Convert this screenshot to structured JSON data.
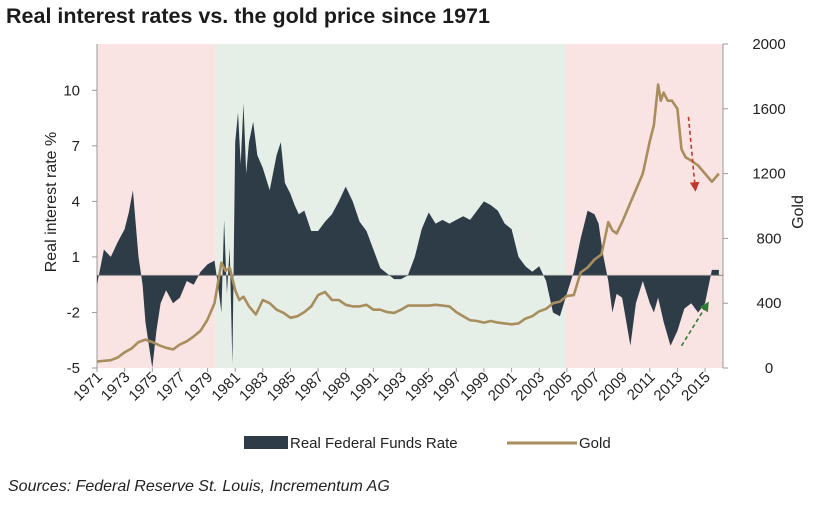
{
  "title": "Real interest rates vs. the gold price since 1971",
  "source": "Sources: Federal Reserve St. Louis, Incrementum AG",
  "colors": {
    "fed_funds": "#2e3c47",
    "gold": "#a88d5d",
    "shade_pink": "#f9e3e3",
    "shade_green": "#e5efe8",
    "arrow_red": "#c0392b",
    "arrow_green": "#2e7d32"
  },
  "chart_data": {
    "type": "area",
    "title": "Real interest rates vs. the gold price since 1971",
    "xlim": [
      1971,
      2016.3
    ],
    "x_ticks": [
      "1971",
      "1973",
      "1975",
      "1977",
      "1979",
      "1981",
      "1983",
      "1985",
      "1987",
      "1989",
      "1991",
      "1993",
      "1995",
      "1997",
      "1999",
      "2001",
      "2003",
      "2005",
      "2007",
      "2009",
      "2011",
      "2013",
      "2015"
    ],
    "y_left": {
      "label": "Real interest  rate %",
      "lim": [
        -5,
        12.5
      ],
      "ticks": [
        "-5",
        "-2",
        "1",
        "4",
        "7",
        "10"
      ]
    },
    "y_right": {
      "label": "Gold",
      "lim": [
        0,
        2000
      ],
      "ticks": [
        "0",
        "400",
        "800",
        "1200",
        "1600",
        "2000"
      ]
    },
    "shaded_regions": [
      {
        "from": 1971,
        "to": 1979.6,
        "color": "pink"
      },
      {
        "from": 1979.6,
        "to": 2004.9,
        "color": "green"
      },
      {
        "from": 2004.9,
        "to": 2016.3,
        "color": "pink"
      }
    ],
    "legend": {
      "position": "bottom"
    },
    "series": [
      {
        "name": "Real Federal Funds Rate",
        "type": "area",
        "x": [
          1971,
          1971.5,
          1972,
          1972.5,
          1973,
          1973.3,
          1973.6,
          1974,
          1974.3,
          1974.5,
          1974.8,
          1975,
          1975.3,
          1975.6,
          1976,
          1976.5,
          1977,
          1977.5,
          1978,
          1978.5,
          1979,
          1979.5,
          1979.8,
          1980,
          1980.2,
          1980.4,
          1980.6,
          1980.8,
          1981,
          1981.2,
          1981.4,
          1981.6,
          1981.8,
          1982,
          1982.3,
          1982.6,
          1983,
          1983.5,
          1984,
          1984.3,
          1984.6,
          1985,
          1985.3,
          1985.6,
          1986,
          1986.5,
          1987,
          1987.5,
          1988,
          1988.5,
          1989,
          1989.5,
          1990,
          1990.5,
          1991,
          1991.5,
          1992,
          1992.5,
          1993,
          1993.5,
          1994,
          1994.5,
          1995,
          1995.5,
          1996,
          1996.5,
          1997,
          1997.5,
          1998,
          1998.5,
          1999,
          1999.5,
          2000,
          2000.5,
          2001,
          2001.5,
          2002,
          2002.5,
          2003,
          2003.5,
          2004,
          2004.5,
          2005,
          2005.5,
          2006,
          2006.5,
          2007,
          2007.3,
          2007.6,
          2008,
          2008.3,
          2008.6,
          2009,
          2009.3,
          2009.6,
          2010,
          2010.5,
          2011,
          2011.3,
          2011.6,
          2012,
          2012.5,
          2013,
          2013.5,
          2014,
          2014.5,
          2015,
          2015.5,
          2016
        ],
        "values": [
          -0.5,
          1.4,
          1.0,
          1.8,
          2.5,
          3.4,
          4.6,
          1.0,
          -0.5,
          -2.5,
          -4.0,
          -5.0,
          -3.0,
          -1.5,
          -0.8,
          -1.5,
          -1.2,
          -0.3,
          -0.5,
          0.2,
          0.6,
          0.8,
          -0.8,
          -2.0,
          3.0,
          -1.0,
          1.5,
          -4.8,
          7.2,
          8.8,
          6.0,
          9.3,
          5.5,
          7.2,
          8.3,
          6.5,
          5.8,
          4.6,
          6.5,
          7.2,
          5.0,
          4.4,
          3.8,
          3.3,
          3.5,
          2.4,
          2.4,
          2.9,
          3.3,
          4.0,
          4.8,
          4.0,
          2.9,
          2.4,
          1.4,
          0.4,
          0.1,
          -0.2,
          -0.2,
          0.0,
          1.0,
          2.5,
          3.4,
          2.8,
          3.0,
          2.8,
          3.0,
          3.2,
          3.0,
          3.5,
          4.0,
          3.8,
          3.5,
          2.8,
          2.5,
          1.0,
          0.5,
          0.2,
          0.5,
          -0.3,
          -2.0,
          -2.2,
          -1.0,
          0.2,
          2.0,
          3.5,
          3.3,
          2.8,
          1.2,
          -0.3,
          -2.0,
          -1.0,
          -1.2,
          -2.5,
          -3.8,
          -1.5,
          -0.3,
          -1.5,
          -2.0,
          -1.2,
          -2.5,
          -3.8,
          -3.0,
          -1.8,
          -1.5,
          -2.0,
          -1.5,
          0.3,
          0.3
        ]
      },
      {
        "name": "Gold",
        "type": "line",
        "axis": "right",
        "x": [
          1971,
          1972,
          1972.5,
          1973,
          1973.5,
          1974,
          1974.5,
          1975,
          1975.5,
          1976,
          1976.5,
          1977,
          1977.5,
          1978,
          1978.5,
          1979,
          1979.5,
          1980,
          1980.3,
          1980.6,
          1981,
          1981.3,
          1981.6,
          1982,
          1982.5,
          1983,
          1983.5,
          1984,
          1984.5,
          1985,
          1985.5,
          1986,
          1986.5,
          1987,
          1987.5,
          1988,
          1988.5,
          1989,
          1989.5,
          1990,
          1990.5,
          1991,
          1991.5,
          1992,
          1992.5,
          1993,
          1993.5,
          1994,
          1994.5,
          1995,
          1995.5,
          1996,
          1996.5,
          1997,
          1997.5,
          1998,
          1998.5,
          1999,
          1999.5,
          2000,
          2000.5,
          2001,
          2001.5,
          2002,
          2002.5,
          2003,
          2003.5,
          2004,
          2004.5,
          2005,
          2005.5,
          2006,
          2006.5,
          2007,
          2007.5,
          2008,
          2008.3,
          2008.6,
          2009,
          2009.5,
          2010,
          2010.5,
          2011,
          2011.3,
          2011.6,
          2011.8,
          2012,
          2012.3,
          2012.6,
          2013,
          2013.3,
          2013.6,
          2014,
          2014.5,
          2015,
          2015.5,
          2016
        ],
        "values": [
          40,
          48,
          65,
          97,
          120,
          160,
          175,
          160,
          140,
          125,
          115,
          145,
          165,
          195,
          230,
          300,
          400,
          650,
          600,
          620,
          480,
          420,
          440,
          380,
          330,
          420,
          400,
          360,
          340,
          310,
          320,
          345,
          380,
          450,
          470,
          420,
          420,
          390,
          380,
          380,
          390,
          360,
          360,
          345,
          340,
          360,
          385,
          385,
          385,
          385,
          390,
          385,
          380,
          345,
          320,
          295,
          290,
          280,
          290,
          280,
          275,
          270,
          275,
          305,
          320,
          350,
          365,
          400,
          410,
          445,
          450,
          590,
          620,
          670,
          700,
          900,
          850,
          830,
          900,
          1000,
          1100,
          1200,
          1400,
          1500,
          1750,
          1650,
          1700,
          1650,
          1650,
          1600,
          1350,
          1300,
          1280,
          1250,
          1200,
          1150,
          1200
        ]
      }
    ],
    "annotations": [
      {
        "type": "arrow",
        "color": "red",
        "from": [
          2013.8,
          1550
        ],
        "to": [
          2014.3,
          1100
        ]
      },
      {
        "type": "arrow",
        "color": "green",
        "from": [
          2013.3,
          -3.8
        ],
        "to": [
          2015.2,
          -1.5
        ]
      }
    ]
  },
  "legend_labels": {
    "fed_funds": "Real Federal Funds Rate",
    "gold": "Gold"
  }
}
